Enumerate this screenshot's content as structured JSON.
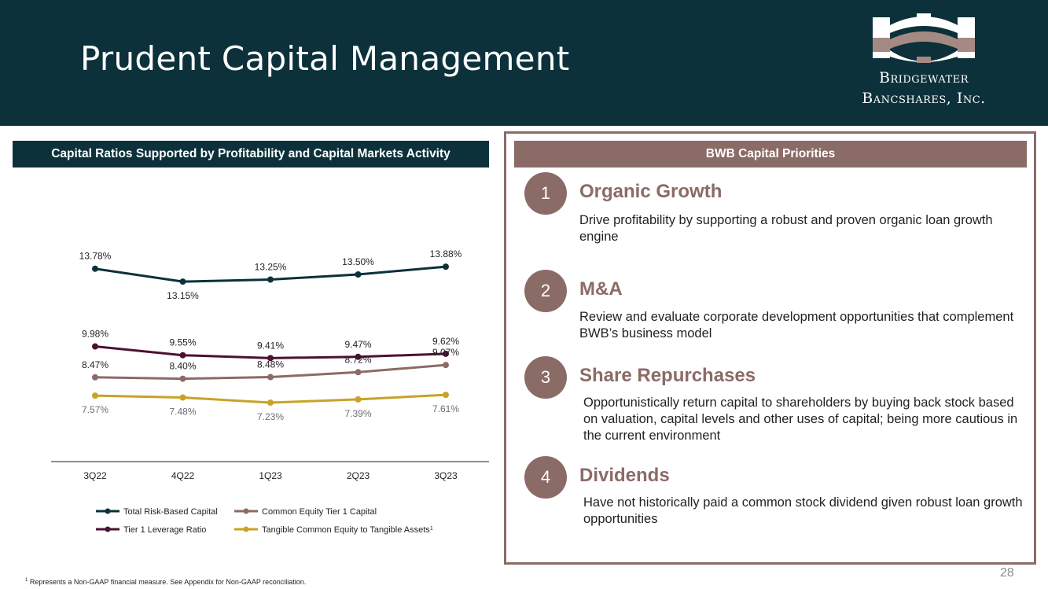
{
  "page": {
    "title": "Prudent Capital Management",
    "page_number": "28",
    "footnote_marker": "1",
    "footnote": "Represents a Non-GAAP financial measure. See Appendix for Non-GAAP reconciliation."
  },
  "logo": {
    "line1": "Bridgewater",
    "line2": "Bancshares, Inc.",
    "icon": "bridge-logo-icon"
  },
  "chart_header": "Capital Ratios Supported by Profitability and Capital Markets Activity",
  "chart_data": {
    "type": "line",
    "title": "Capital Ratios Supported by Profitability and Capital Markets Activity",
    "categories": [
      "3Q22",
      "4Q22",
      "1Q23",
      "2Q23",
      "3Q23"
    ],
    "ylim": [
      6.0,
      15.0
    ],
    "grid": false,
    "legend_position": "bottom",
    "xlabel": "",
    "ylabel": "",
    "series": [
      {
        "name": "Total Risk-Based Capital",
        "values": [
          13.78,
          13.15,
          13.25,
          13.5,
          13.88
        ],
        "labels": [
          "13.78%",
          "13.15%",
          "13.25%",
          "13.50%",
          "13.88%"
        ],
        "color": "#0c313a",
        "label_placement": [
          "above",
          "below",
          "above",
          "above",
          "above"
        ]
      },
      {
        "name": "Tier 1 Leverage Ratio",
        "values": [
          9.98,
          9.55,
          9.41,
          9.47,
          9.62
        ],
        "labels": [
          "9.98%",
          "9.55%",
          "9.41%",
          "9.47%",
          "9.62%"
        ],
        "color": "#4d1131",
        "label_placement": [
          "above",
          "above",
          "above",
          "above",
          "above"
        ]
      },
      {
        "name": "Common Equity Tier 1 Capital",
        "values": [
          8.47,
          8.4,
          8.48,
          8.72,
          9.07
        ],
        "labels": [
          "8.47%",
          "8.40%",
          "8.48%",
          "8.72%",
          "9.07%"
        ],
        "color": "#8b6b66",
        "label_placement": [
          "above",
          "above",
          "above",
          "above",
          "above"
        ]
      },
      {
        "name": "Tangible Common Equity to Tangible Assets",
        "legend_superscript": "1",
        "values": [
          7.57,
          7.48,
          7.23,
          7.39,
          7.61
        ],
        "labels": [
          "7.57%",
          "7.48%",
          "7.23%",
          "7.39%",
          "7.61%"
        ],
        "color": "#c9a227",
        "label_placement": [
          "below",
          "below",
          "below",
          "below",
          "below"
        ]
      }
    ]
  },
  "priorities": {
    "header": "BWB Capital Priorities",
    "accent_color": "#8b6b66",
    "items": [
      {
        "number": "1",
        "title": "Organic Growth",
        "description": "Drive profitability by supporting a robust and proven organic loan growth engine"
      },
      {
        "number": "2",
        "title": "M&A",
        "description": "Review and evaluate corporate development opportunities that complement BWB’s business model"
      },
      {
        "number": "3",
        "title": "Share Repurchases",
        "description": "Opportunistically return capital to shareholders by buying back stock based on valuation, capital levels and other uses of capital; being more cautious in the current environment"
      },
      {
        "number": "4",
        "title": "Dividends",
        "description": "Have not historically paid a common stock dividend given robust loan growth opportunities"
      }
    ]
  }
}
